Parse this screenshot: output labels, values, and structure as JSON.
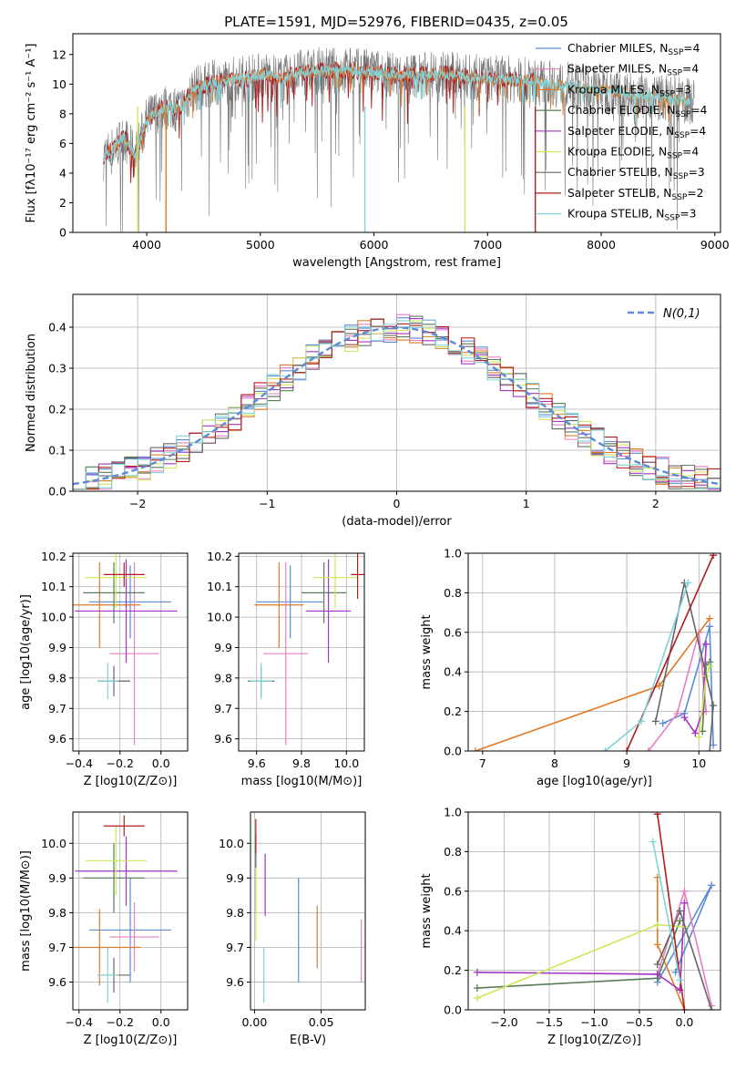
{
  "colors": {
    "chabrier_miles": "#5b8bd6",
    "salpeter_miles": "#e87fc3",
    "kroupa_miles": "#e07a27",
    "chabrier_elodie": "#5a7d5a",
    "salpeter_elodie": "#a235c2",
    "kroupa_elodie": "#cde85a",
    "chabrier_stelib": "#666666",
    "salpeter_stelib": "#b21c1c",
    "kroupa_stelib": "#7fd3d8",
    "normal": "#5b8bd6"
  },
  "chart_data": [
    {
      "type": "line",
      "title": "PLATE=1591, MJD=52976, FIBERID=0435, z=0.05",
      "xlabel": "wavelength [Angstrom, rest frame]",
      "ylabel": "Flux [fλ10⁻¹⁷ erg cm⁻² s⁻¹ A⁻¹]",
      "xlim": [
        3350,
        9050
      ],
      "ylim": [
        0,
        13.4
      ],
      "xticks": [
        4000,
        5000,
        6000,
        7000,
        8000,
        9000
      ],
      "yticks": [
        0,
        2,
        4,
        6,
        8,
        10,
        12
      ],
      "legend": "top-right",
      "legend_entries": [
        {
          "label": "Chabrier MILES, N",
          "sub": "SSP",
          "suffix": "=4"
        },
        {
          "label": "Salpeter MILES, N",
          "sub": "SSP",
          "suffix": "=4"
        },
        {
          "label": "Kroupa MILES, N",
          "sub": "SSP",
          "suffix": "=3"
        },
        {
          "label": "Chabrier ELODIE, N",
          "sub": "SSP",
          "suffix": "=4"
        },
        {
          "label": "Salpeter ELODIE, N",
          "sub": "SSP",
          "suffix": "=4"
        },
        {
          "label": "Kroupa ELODIE, N",
          "sub": "SSP",
          "suffix": "=4"
        },
        {
          "label": "Chabrier STELIB, N",
          "sub": "SSP",
          "suffix": "=3"
        },
        {
          "label": "Salpeter STELIB, N",
          "sub": "SSP",
          "suffix": "=2"
        },
        {
          "label": "Kroupa STELIB, N",
          "sub": "SSP",
          "suffix": "=3"
        }
      ],
      "series_note": "continuum",
      "continuum": {
        "x": [
          3600,
          3700,
          3800,
          3900,
          4000,
          4100,
          4200,
          4300,
          4400,
          4500,
          4600,
          4700,
          4800,
          4900,
          5000,
          5100,
          5200,
          5300,
          5400,
          5500,
          5600,
          5800,
          6000,
          6200,
          6400,
          6600,
          6800,
          7000,
          7200,
          7400,
          7600,
          7800,
          8000,
          8200,
          8400,
          8600,
          8800
        ],
        "y": [
          5.0,
          5.6,
          6.4,
          5.2,
          7.6,
          8.2,
          8.5,
          8.3,
          9.6,
          9.9,
          10.1,
          10.2,
          10.4,
          10.4,
          10.6,
          10.6,
          10.3,
          10.7,
          10.8,
          10.9,
          10.9,
          10.9,
          10.8,
          10.6,
          10.6,
          10.7,
          10.5,
          10.4,
          10.3,
          10.2,
          10.0,
          9.8,
          9.6,
          9.4,
          9.2,
          9.0,
          8.8
        ]
      }
    },
    {
      "type": "bar",
      "xlabel": "(data-model)/error",
      "ylabel": "Normed distribution",
      "xlim": [
        -2.5,
        2.5
      ],
      "ylim": [
        0,
        0.48
      ],
      "xticks": [
        -2,
        -1,
        0,
        1,
        2
      ],
      "yticks": [
        0.0,
        0.1,
        0.2,
        0.3,
        0.4
      ],
      "legend": "top-right",
      "legend_label": "N(0,1)",
      "bin_width": 0.1
    },
    {
      "type": "scatter",
      "xlabel": "Z [log10(Z/Z⊙)]",
      "ylabel": "age  [log10(age/yr)]",
      "xlim": [
        -0.43,
        0.13
      ],
      "ylim": [
        9.56,
        10.21
      ],
      "xticks": [
        -0.4,
        -0.2,
        0.0
      ],
      "yticks": [
        9.6,
        9.7,
        9.8,
        9.9,
        10.0,
        10.1,
        10.2
      ],
      "points": [
        {
          "s": "chabrier_miles",
          "x": -0.15,
          "y": 10.05,
          "ex": 0.2,
          "ey": 0.12
        },
        {
          "s": "salpeter_miles",
          "x": -0.13,
          "y": 9.88,
          "ex": 0.12,
          "ey": 0.3
        },
        {
          "s": "kroupa_miles",
          "x": -0.3,
          "y": 10.04,
          "ex": 0.2,
          "ey": 0.14
        },
        {
          "s": "chabrier_elodie",
          "x": -0.23,
          "y": 10.08,
          "ex": 0.15,
          "ey": 0.1
        },
        {
          "s": "salpeter_elodie",
          "x": -0.17,
          "y": 10.02,
          "ex": 0.25,
          "ey": 0.17
        },
        {
          "s": "kroupa_elodie",
          "x": -0.22,
          "y": 10.13,
          "ex": 0.15,
          "ey": 0.1
        },
        {
          "s": "chabrier_stelib",
          "x": -0.23,
          "y": 9.79,
          "ex": 0.08,
          "ey": 0.05
        },
        {
          "s": "salpeter_stelib",
          "x": -0.18,
          "y": 10.14,
          "ex": 0.1,
          "ey": 0.04
        },
        {
          "s": "kroupa_stelib",
          "x": -0.26,
          "y": 9.79,
          "ex": 0.05,
          "ey": 0.06
        }
      ]
    },
    {
      "type": "scatter",
      "xlabel": "mass [log10(M/M⊙)]",
      "xlim": [
        9.52,
        10.08
      ],
      "ylim": [
        9.56,
        10.21
      ],
      "xticks": [
        9.6,
        9.8,
        10.0
      ],
      "yticks": [
        9.6,
        9.7,
        9.8,
        9.9,
        10.0,
        10.1,
        10.2
      ],
      "points": [
        {
          "s": "chabrier_miles",
          "x": 9.75,
          "y": 10.05,
          "ex": 0.15,
          "ey": 0.12
        },
        {
          "s": "salpeter_miles",
          "x": 9.73,
          "y": 9.88,
          "ex": 0.1,
          "ey": 0.3
        },
        {
          "s": "kroupa_miles",
          "x": 9.7,
          "y": 10.04,
          "ex": 0.11,
          "ey": 0.14
        },
        {
          "s": "chabrier_elodie",
          "x": 9.9,
          "y": 10.08,
          "ex": 0.1,
          "ey": 0.1
        },
        {
          "s": "salpeter_elodie",
          "x": 9.92,
          "y": 10.02,
          "ex": 0.1,
          "ey": 0.17
        },
        {
          "s": "kroupa_elodie",
          "x": 9.95,
          "y": 10.13,
          "ex": 0.1,
          "ey": 0.1
        },
        {
          "s": "chabrier_stelib",
          "x": 9.62,
          "y": 9.79,
          "ex": 0.06,
          "ey": 0.05
        },
        {
          "s": "salpeter_stelib",
          "x": 10.05,
          "y": 10.14,
          "ex": 0.03,
          "ey": 0.08
        },
        {
          "s": "kroupa_stelib",
          "x": 9.62,
          "y": 9.79,
          "ex": 0.05,
          "ey": 0.06
        }
      ]
    },
    {
      "type": "line",
      "xlabel": "age  [log10(age/yr)]",
      "ylabel": "mass weight",
      "xlim": [
        6.8,
        10.3
      ],
      "ylim": [
        0,
        1.0
      ],
      "xticks": [
        7,
        8,
        9,
        10
      ],
      "yticks": [
        0.0,
        0.2,
        0.4,
        0.6,
        0.8,
        1.0
      ],
      "series": [
        {
          "s": "chabrier_miles",
          "x": [
            9.5,
            9.8,
            10.15,
            10.2
          ],
          "y": [
            0.14,
            0.19,
            0.63,
            0.03
          ]
        },
        {
          "s": "salpeter_miles",
          "x": [
            9.3,
            9.7,
            10.0,
            10.1
          ],
          "y": [
            0.0,
            0.19,
            0.6,
            0.2
          ]
        },
        {
          "s": "kroupa_miles",
          "x": [
            6.9,
            9.45,
            10.15
          ],
          "y": [
            0.0,
            0.33,
            0.67
          ]
        },
        {
          "s": "chabrier_elodie",
          "x": [
            10.05,
            10.1,
            10.15
          ],
          "y": [
            0.1,
            0.43,
            0.45
          ]
        },
        {
          "s": "salpeter_elodie",
          "x": [
            9.8,
            9.95,
            10.05,
            10.1
          ],
          "y": [
            0.17,
            0.09,
            0.2,
            0.54
          ]
        },
        {
          "s": "kroupa_elodie",
          "x": [
            10.0,
            10.1,
            10.15
          ],
          "y": [
            0.07,
            0.38,
            0.43
          ]
        },
        {
          "s": "chabrier_stelib",
          "x": [
            9.4,
            9.8,
            10.2,
            10.15
          ],
          "y": [
            0.15,
            0.85,
            0.23,
            0.0
          ]
        },
        {
          "s": "salpeter_stelib",
          "x": [
            9.0,
            10.2
          ],
          "y": [
            0.0,
            0.99
          ]
        },
        {
          "s": "kroupa_stelib",
          "x": [
            8.7,
            9.2,
            9.85
          ],
          "y": [
            0.0,
            0.15,
            0.85
          ]
        }
      ]
    },
    {
      "type": "scatter",
      "xlabel": "Z [log10(Z/Z⊙)]",
      "ylabel": "mass [log10(M/M⊙)]",
      "xlim": [
        -0.43,
        0.13
      ],
      "ylim": [
        9.52,
        10.09
      ],
      "xticks": [
        -0.4,
        -0.2,
        0.0
      ],
      "yticks": [
        9.6,
        9.7,
        9.8,
        9.9,
        10.0
      ],
      "points": [
        {
          "s": "chabrier_miles",
          "x": -0.15,
          "y": 9.75,
          "ex": 0.2,
          "ey": 0.15
        },
        {
          "s": "salpeter_miles",
          "x": -0.13,
          "y": 9.73,
          "ex": 0.12,
          "ey": 0.1
        },
        {
          "s": "kroupa_miles",
          "x": -0.3,
          "y": 9.7,
          "ex": 0.2,
          "ey": 0.11
        },
        {
          "s": "chabrier_elodie",
          "x": -0.23,
          "y": 9.9,
          "ex": 0.15,
          "ey": 0.1
        },
        {
          "s": "salpeter_elodie",
          "x": -0.17,
          "y": 9.92,
          "ex": 0.25,
          "ey": 0.1
        },
        {
          "s": "kroupa_elodie",
          "x": -0.22,
          "y": 9.95,
          "ex": 0.15,
          "ey": 0.1
        },
        {
          "s": "chabrier_stelib",
          "x": -0.23,
          "y": 9.62,
          "ex": 0.08,
          "ey": 0.05
        },
        {
          "s": "salpeter_stelib",
          "x": -0.18,
          "y": 10.05,
          "ex": 0.1,
          "ey": 0.03
        },
        {
          "s": "kroupa_stelib",
          "x": -0.26,
          "y": 9.62,
          "ex": 0.05,
          "ey": 0.08
        }
      ]
    },
    {
      "type": "scatter",
      "xlabel": "E(B-V)",
      "xlim": [
        -0.003,
        0.083
      ],
      "ylim": [
        9.52,
        10.09
      ],
      "xticks": [
        0.0,
        0.05
      ],
      "yticks": [
        9.6,
        9.7,
        9.8,
        9.9,
        10.0
      ],
      "points": [
        {
          "s": "chabrier_miles",
          "x": 0.033,
          "y": 9.75,
          "ex": 0,
          "ey": 0.15
        },
        {
          "s": "salpeter_miles",
          "x": 0.08,
          "y": 9.69,
          "ex": 0,
          "ey": 0.09
        },
        {
          "s": "kroupa_miles",
          "x": 0.047,
          "y": 9.73,
          "ex": 0,
          "ey": 0.09
        },
        {
          "s": "chabrier_elodie",
          "x": 0.001,
          "y": 9.9,
          "ex": 0,
          "ey": 0.1
        },
        {
          "s": "salpeter_elodie",
          "x": 0.008,
          "y": 9.88,
          "ex": 0,
          "ey": 0.09
        },
        {
          "s": "kroupa_elodie",
          "x": 0.001,
          "y": 9.87,
          "ex": 0,
          "ey": 0.15
        },
        {
          "s": "chabrier_stelib",
          "x": 0.001,
          "y": 9.98,
          "ex": 0,
          "ey": 0.05
        },
        {
          "s": "salpeter_stelib",
          "x": 0.001,
          "y": 10.02,
          "ex": 0,
          "ey": 0.05
        },
        {
          "s": "kroupa_stelib",
          "x": 0.007,
          "y": 9.62,
          "ex": 0,
          "ey": 0.08
        }
      ]
    },
    {
      "type": "line",
      "xlabel": "Z [log10(Z/Z⊙)]",
      "ylabel": "mass weight",
      "xlim": [
        -2.4,
        0.4
      ],
      "ylim": [
        0,
        1.0
      ],
      "xticks": [
        -2.0,
        -1.5,
        -1.0,
        -0.5,
        0.0
      ],
      "yticks": [
        0.0,
        0.2,
        0.4,
        0.6,
        0.8,
        1.0
      ],
      "series": [
        {
          "s": "chabrier_miles",
          "x": [
            -0.3,
            0.3,
            -0.1
          ],
          "y": [
            0.14,
            0.63,
            0.19
          ]
        },
        {
          "s": "salpeter_miles",
          "x": [
            -0.3,
            0.0,
            0.3
          ],
          "y": [
            0.18,
            0.6,
            0.02
          ]
        },
        {
          "s": "kroupa_miles",
          "x": [
            -0.3,
            -0.3,
            0.0
          ],
          "y": [
            0.67,
            0.33,
            0.0
          ]
        },
        {
          "s": "chabrier_elodie",
          "x": [
            -2.3,
            -0.3,
            -0.05
          ],
          "y": [
            0.11,
            0.16,
            0.45
          ]
        },
        {
          "s": "salpeter_elodie",
          "x": [
            -2.3,
            -0.3,
            -0.05,
            0.0
          ],
          "y": [
            0.19,
            0.18,
            0.1,
            0.54
          ]
        },
        {
          "s": "kroupa_elodie",
          "x": [
            -2.3,
            -0.3,
            0.0
          ],
          "y": [
            0.06,
            0.43,
            0.42
          ]
        },
        {
          "s": "chabrier_stelib",
          "x": [
            -0.3,
            -0.05,
            0.3
          ],
          "y": [
            0.23,
            0.5,
            0.0
          ]
        },
        {
          "s": "salpeter_stelib",
          "x": [
            -0.3,
            0.0
          ],
          "y": [
            0.99,
            0.0
          ]
        },
        {
          "s": "kroupa_stelib",
          "x": [
            -0.35,
            -0.05
          ],
          "y": [
            0.85,
            0.15
          ]
        }
      ]
    }
  ]
}
